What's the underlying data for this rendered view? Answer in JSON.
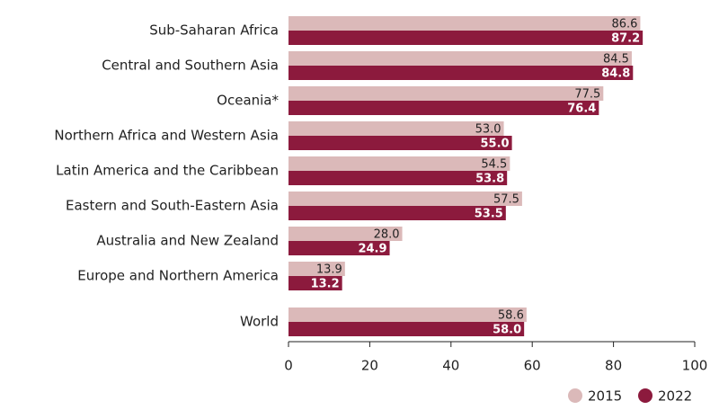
{
  "chart_data": {
    "type": "barh",
    "categories": [
      "Sub-Saharan Africa",
      "Central and Southern Asia",
      "Oceania*",
      "Northern Africa and Western Asia",
      "Latin America and the Caribbean",
      "Eastern and South-Eastern Asia",
      "Australia and New Zealand",
      "Europe and Northern America",
      "World"
    ],
    "series": [
      {
        "name": "2015",
        "color": "#dbb9b9",
        "label_color": "#222222",
        "values": [
          86.6,
          84.5,
          77.5,
          53.0,
          54.5,
          57.5,
          28.0,
          13.9,
          58.6
        ],
        "value_labels": [
          "86.6",
          "84.5",
          "77.5",
          "53.0",
          "54.5",
          "57.5",
          "28.0",
          "13.9",
          "58.6"
        ]
      },
      {
        "name": "2022",
        "color": "#8c1a3d",
        "label_color": "#ffffff",
        "values": [
          87.2,
          84.8,
          76.4,
          55.0,
          53.8,
          53.5,
          24.9,
          13.2,
          58.0
        ],
        "value_labels": [
          "87.2",
          "84.8",
          "76.4",
          "55.0",
          "53.8",
          "53.5",
          "24.9",
          "13.2",
          "58.0"
        ]
      }
    ],
    "xlim": [
      0,
      100
    ],
    "xticks": [
      0,
      20,
      40,
      60,
      80,
      100
    ],
    "grid": false,
    "legend": "bottom-right"
  }
}
